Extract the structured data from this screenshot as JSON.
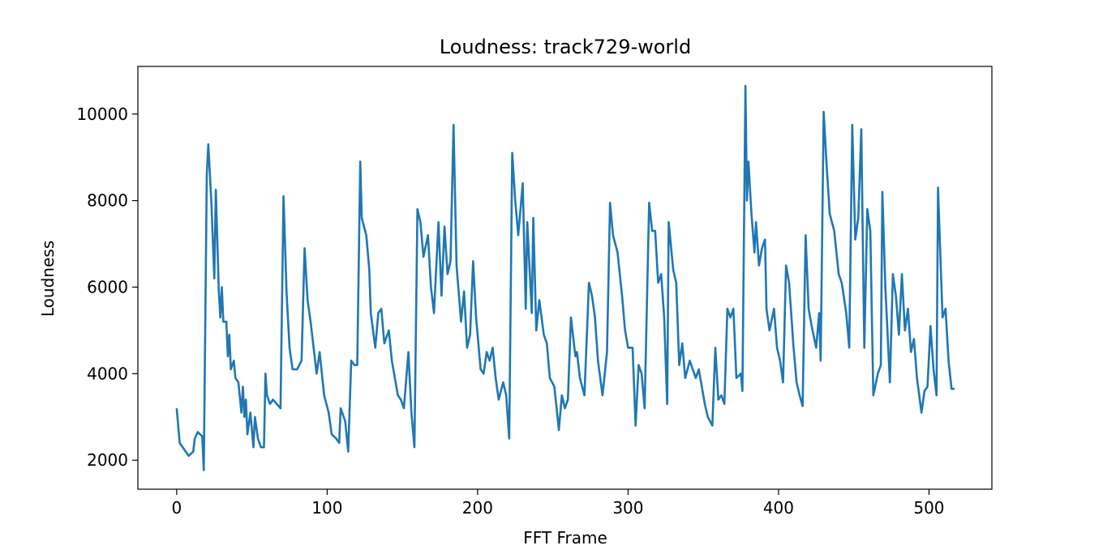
{
  "chart_data": {
    "type": "line",
    "title": "Loudness: track729-world",
    "xlabel": "FFT Frame",
    "ylabel": "Loudness",
    "x": [
      0,
      2,
      5,
      8,
      11,
      12,
      14,
      17,
      18,
      20,
      21,
      23,
      25,
      26,
      28,
      29,
      30,
      31,
      33,
      34,
      35,
      36,
      38,
      39,
      41,
      43,
      44,
      45,
      46,
      47,
      49,
      51,
      52,
      54,
      56,
      58,
      59,
      60,
      62,
      64,
      69,
      71,
      73,
      75,
      77,
      80,
      83,
      85,
      87,
      89,
      93,
      95,
      98,
      101,
      103,
      106,
      108,
      109,
      112,
      114,
      116,
      118,
      120,
      122,
      123,
      126,
      128,
      129,
      132,
      134,
      136,
      138,
      141,
      143,
      147,
      149,
      151,
      154,
      156,
      158,
      160,
      162,
      164,
      167,
      169,
      171,
      174,
      176,
      178,
      180,
      182,
      184,
      186,
      189,
      191,
      193,
      195,
      197,
      199,
      202,
      204,
      206,
      208,
      210,
      212,
      214,
      217,
      219,
      221,
      223,
      225,
      227,
      230,
      232,
      233,
      236,
      237,
      239,
      241,
      244,
      246,
      248,
      251,
      254,
      256,
      258,
      260,
      262,
      265,
      266,
      268,
      271,
      274,
      276,
      278,
      280,
      283,
      286,
      288,
      290,
      293,
      296,
      298,
      300,
      303,
      305,
      307,
      309,
      311,
      314,
      316,
      318,
      320,
      322,
      324,
      326,
      327,
      330,
      332,
      334,
      336,
      338,
      341,
      343,
      345,
      347,
      349,
      351,
      353,
      356,
      358,
      360,
      362,
      364,
      366,
      368,
      370,
      372,
      375,
      376,
      378,
      379,
      380,
      382,
      384,
      385,
      387,
      389,
      391,
      392,
      394,
      397,
      399,
      401,
      403,
      405,
      407,
      410,
      412,
      414,
      416,
      418,
      420,
      422,
      425,
      427,
      428,
      430,
      432,
      434,
      437,
      440,
      442,
      445,
      447,
      449,
      451,
      453,
      455,
      457,
      459,
      461,
      463,
      466,
      468,
      469,
      471,
      474,
      476,
      478,
      480,
      482,
      484,
      486,
      488,
      490,
      492,
      495,
      497,
      499,
      501,
      503,
      505,
      506,
      509,
      511,
      513,
      515,
      517
    ],
    "values": [
      3200,
      2400,
      2250,
      2100,
      2200,
      2500,
      2650,
      2550,
      1770,
      8600,
      9300,
      8000,
      6200,
      8250,
      5900,
      5300,
      6000,
      5200,
      5200,
      4400,
      4900,
      4100,
      4300,
      3900,
      3800,
      3100,
      3700,
      3000,
      3400,
      2600,
      3100,
      2300,
      3000,
      2500,
      2300,
      2300,
      4000,
      3500,
      3300,
      3400,
      3200,
      8100,
      5900,
      4600,
      4100,
      4100,
      4300,
      6900,
      5700,
      5200,
      4000,
      4500,
      3500,
      3100,
      2600,
      2500,
      2400,
      3200,
      2900,
      2200,
      4300,
      4200,
      4200,
      8900,
      7600,
      7200,
      6400,
      5400,
      4600,
      5400,
      5500,
      4700,
      5000,
      4300,
      3500,
      3400,
      3200,
      4500,
      3100,
      2300,
      7800,
      7500,
      6700,
      7200,
      6000,
      5400,
      7500,
      5800,
      7400,
      6300,
      6600,
      9750,
      6500,
      5200,
      5900,
      4600,
      4900,
      6600,
      5300,
      4100,
      4000,
      4500,
      4300,
      4600,
      3900,
      3400,
      3800,
      3500,
      2500,
      9100,
      8000,
      7200,
      8400,
      5500,
      7500,
      5400,
      7600,
      5000,
      5700,
      4900,
      4700,
      3900,
      3700,
      2700,
      3500,
      3200,
      3400,
      5300,
      4400,
      4500,
      3900,
      3500,
      6100,
      5800,
      5300,
      4300,
      3500,
      4500,
      7950,
      7200,
      6800,
      5800,
      5000,
      4600,
      4600,
      2800,
      4200,
      4000,
      3200,
      7950,
      7300,
      7300,
      6100,
      6300,
      5300,
      3300,
      7500,
      6400,
      6100,
      4200,
      4700,
      3900,
      4300,
      4100,
      3900,
      4100,
      3700,
      3300,
      3000,
      2800,
      4600,
      3400,
      3500,
      3300,
      5500,
      5300,
      5500,
      3900,
      4000,
      3600,
      10650,
      8000,
      8900,
      7700,
      6800,
      7500,
      6500,
      6900,
      7100,
      5500,
      5000,
      5500,
      4600,
      4300,
      3800,
      6500,
      6100,
      4600,
      3800,
      3500,
      3250,
      7200,
      5500,
      5100,
      4600,
      5400,
      4300,
      10050,
      8800,
      7700,
      7300,
      6300,
      6100,
      5400,
      4600,
      9750,
      7100,
      7600,
      9650,
      4600,
      7800,
      7300,
      3500,
      4000,
      4200,
      8200,
      6000,
      3800,
      6300,
      5800,
      4900,
      6300,
      5000,
      5500,
      4500,
      4800,
      3900,
      3100,
      3600,
      3700,
      5100,
      4100,
      3500,
      8300,
      5300,
      5500,
      4300,
      3650,
      3650
    ],
    "color": "#1f77b4",
    "xlim": [
      -25.8,
      541.8
    ],
    "xticks": [
      0,
      100,
      200,
      300,
      400,
      500
    ],
    "ylim": [
      1330,
      11100
    ],
    "yticks": [
      2000,
      4000,
      6000,
      8000,
      10000
    ]
  }
}
